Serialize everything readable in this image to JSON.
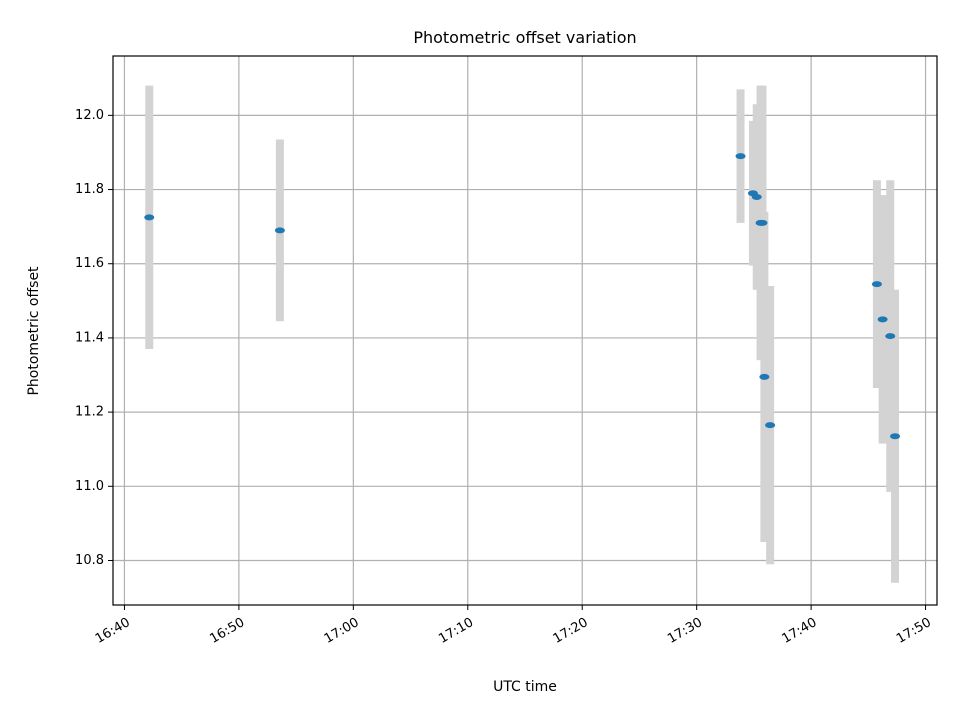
{
  "chart_data": {
    "type": "scatter",
    "title": "Photometric offset variation",
    "xlabel": "UTC time",
    "ylabel": "Photometric offset",
    "x_axis_kind": "time",
    "xlim": [
      "16:39",
      "17:51"
    ],
    "ylim": [
      10.68,
      12.16
    ],
    "xticks": [
      "16:40",
      "16:50",
      "17:00",
      "17:10",
      "17:20",
      "17:30",
      "17:40",
      "17:50"
    ],
    "yticks": [
      10.8,
      11.0,
      11.2,
      11.4,
      11.6,
      11.8,
      12.0
    ],
    "ytick_labels": [
      "10.8",
      "11.0",
      "11.2",
      "11.4",
      "11.6",
      "11.8",
      "12.0"
    ],
    "grid": true,
    "marker_color": "#1f77b4",
    "errorbar_color": "#d3d3d3",
    "points": [
      {
        "x": "16:42:10",
        "y": 11.725,
        "err": 0.355
      },
      {
        "x": "16:53:35",
        "y": 11.69,
        "err": 0.245
      },
      {
        "x": "17:33:50",
        "y": 11.89,
        "err": 0.18
      },
      {
        "x": "17:34:55",
        "y": 11.79,
        "err": 0.195
      },
      {
        "x": "17:35:15",
        "y": 11.78,
        "err": 0.25
      },
      {
        "x": "17:35:35",
        "y": 11.71,
        "err": 0.37
      },
      {
        "x": "17:35:45",
        "y": 11.71,
        "err": 0.37
      },
      {
        "x": "17:35:55",
        "y": 11.295,
        "err": 0.445
      },
      {
        "x": "17:36:25",
        "y": 11.165,
        "err": 0.375
      },
      {
        "x": "17:45:45",
        "y": 11.545,
        "err": 0.28
      },
      {
        "x": "17:46:15",
        "y": 11.45,
        "err": 0.335
      },
      {
        "x": "17:46:55",
        "y": 11.405,
        "err": 0.42
      },
      {
        "x": "17:47:20",
        "y": 11.135,
        "err": 0.395
      }
    ]
  }
}
